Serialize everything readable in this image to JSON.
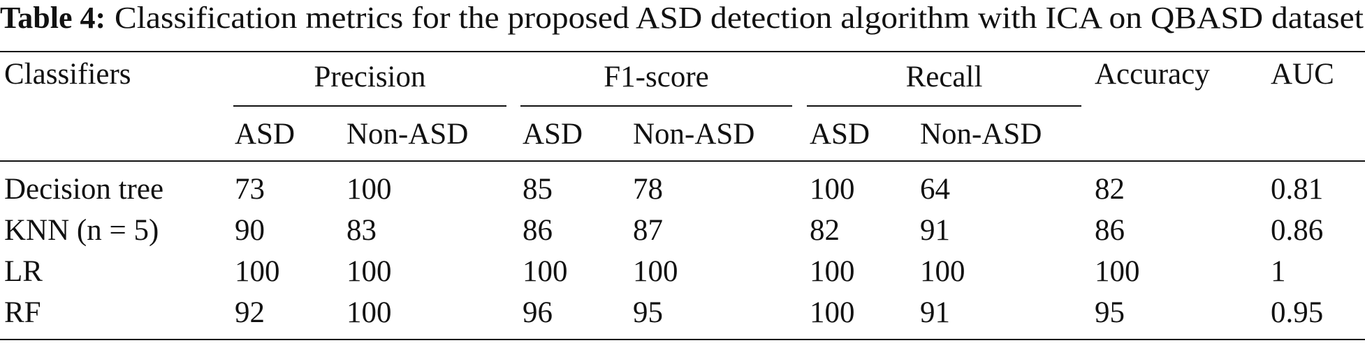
{
  "caption": {
    "label": "Table 4:",
    "text": "Classification metrics for the proposed ASD detection algorithm with ICA on QBASD dataset"
  },
  "table": {
    "first_header": "Classifiers",
    "groups": [
      "Precision",
      "F1-score",
      "Recall"
    ],
    "singles": [
      "Accuracy",
      "AUC"
    ],
    "subheaders": [
      "ASD",
      "Non-ASD",
      "ASD",
      "Non-ASD",
      "ASD",
      "Non-ASD"
    ],
    "rows": [
      [
        "Decision tree",
        73,
        100,
        85,
        78,
        100,
        64,
        82,
        0.81
      ],
      [
        "KNN (n = 5)",
        90,
        83,
        86,
        87,
        82,
        91,
        86,
        0.86
      ],
      [
        "LR",
        100,
        100,
        100,
        100,
        100,
        100,
        100,
        1
      ],
      [
        "RF",
        92,
        100,
        96,
        95,
        100,
        91,
        95,
        0.95
      ]
    ]
  }
}
